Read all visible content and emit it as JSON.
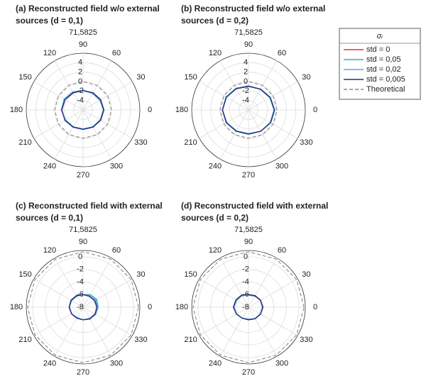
{
  "chart_data": [
    {
      "type": "polar",
      "title": [
        "(a) Reconstructed field w/o external",
        "sources (d = 0,1)"
      ],
      "subtitle": "71,5825",
      "legend_title": "σᵣ",
      "theta": [
        0,
        30,
        60,
        90,
        120,
        150,
        180,
        210,
        240,
        270,
        300,
        330
      ],
      "rlim": [
        -6,
        6
      ],
      "rticks": [
        4,
        2,
        0,
        -2,
        -4
      ],
      "grid": true,
      "series": [
        {
          "name": "std = 0",
          "color": "#e8332a",
          "dash": false,
          "values": [
            -1.6,
            -1.7,
            -1.8,
            -1.9,
            -1.8,
            -1.6,
            -1.5,
            -1.6,
            -1.8,
            -1.9,
            -1.8,
            -1.7
          ]
        },
        {
          "name": "std = 0,05",
          "color": "#35b3a6",
          "dash": false,
          "values": [
            -1.7,
            -1.9,
            -2.0,
            -1.8,
            -1.6,
            -1.4,
            -1.4,
            -1.7,
            -1.9,
            -2.0,
            -1.9,
            -1.8
          ]
        },
        {
          "name": "std = 0,02",
          "color": "#5aa9e6",
          "dash": false,
          "values": [
            -1.6,
            -1.8,
            -1.9,
            -1.9,
            -1.7,
            -1.5,
            -1.5,
            -1.6,
            -1.8,
            -1.9,
            -1.8,
            -1.7
          ]
        },
        {
          "name": "std = 0,005",
          "color": "#2b2a8c",
          "dash": false,
          "values": [
            -1.6,
            -1.7,
            -1.8,
            -1.9,
            -1.8,
            -1.6,
            -1.5,
            -1.6,
            -1.8,
            -1.9,
            -1.8,
            -1.7
          ]
        },
        {
          "name": "Theoretical",
          "color": "#888888",
          "dash": true,
          "values": [
            0,
            0,
            0,
            0,
            0,
            0,
            0,
            0,
            0,
            0,
            0,
            0
          ]
        }
      ]
    },
    {
      "type": "polar",
      "title": [
        "(b) Reconstructed field w/o external",
        "sources (d = 0,2)"
      ],
      "subtitle": "71,5825",
      "theta": [
        0,
        30,
        60,
        90,
        120,
        150,
        180,
        210,
        240,
        270,
        300,
        330
      ],
      "rlim": [
        -6,
        6
      ],
      "rticks": [
        4,
        2,
        0,
        -2,
        -4
      ],
      "grid": true,
      "series": [
        {
          "name": "std = 0",
          "color": "#e8332a",
          "dash": false,
          "values": [
            -0.5,
            -0.7,
            -0.9,
            -1.0,
            -0.8,
            -0.6,
            -0.5,
            -0.6,
            -0.8,
            -0.9,
            -0.8,
            -0.6
          ]
        },
        {
          "name": "std = 0,05",
          "color": "#35b3a6",
          "dash": false,
          "values": [
            -0.6,
            -0.8,
            -1.0,
            -0.9,
            -0.7,
            -0.5,
            -0.5,
            -0.7,
            -0.9,
            -1.0,
            -0.8,
            -0.7
          ]
        },
        {
          "name": "std = 0,02",
          "color": "#5aa9e6",
          "dash": false,
          "values": [
            -0.5,
            -0.7,
            -0.9,
            -0.9,
            -0.8,
            -0.6,
            -0.5,
            -0.6,
            -0.8,
            -0.9,
            -0.8,
            -0.6
          ]
        },
        {
          "name": "std = 0,005",
          "color": "#2b2a8c",
          "dash": false,
          "values": [
            -0.5,
            -0.7,
            -0.9,
            -1.0,
            -0.8,
            -0.6,
            -0.5,
            -0.6,
            -0.8,
            -0.9,
            -0.8,
            -0.6
          ]
        },
        {
          "name": "Theoretical",
          "color": "#888888",
          "dash": true,
          "values": [
            0,
            0,
            0,
            0,
            0,
            0,
            0,
            0,
            0,
            0,
            0,
            0
          ]
        }
      ]
    },
    {
      "type": "polar",
      "title": [
        "(c) Reconstructed field with external",
        "sources (d = 0,1)"
      ],
      "subtitle": "71,5825",
      "theta": [
        0,
        30,
        60,
        90,
        120,
        150,
        180,
        210,
        240,
        270,
        300,
        330
      ],
      "rlim": [
        -8,
        1
      ],
      "rticks": [
        0,
        -2,
        -4,
        -6,
        -8
      ],
      "grid": true,
      "series": [
        {
          "name": "std = 0",
          "color": "#e8332a",
          "dash": false,
          "values": [
            -5.8,
            -5.9,
            -6.0,
            -6.0,
            -5.9,
            -5.8,
            -5.8,
            -5.9,
            -6.0,
            -6.0,
            -5.9,
            -5.8
          ]
        },
        {
          "name": "std = 0,05",
          "color": "#35b3a6",
          "dash": false,
          "values": [
            -5.6,
            -5.5,
            -5.7,
            -6.0,
            -6.0,
            -5.9,
            -5.8,
            -5.9,
            -6.1,
            -6.0,
            -5.8,
            -5.7
          ]
        },
        {
          "name": "std = 0,02",
          "color": "#5aa9e6",
          "dash": false,
          "values": [
            -5.7,
            -5.7,
            -5.9,
            -6.0,
            -5.9,
            -5.8,
            -5.8,
            -5.9,
            -6.0,
            -6.0,
            -5.9,
            -5.8
          ]
        },
        {
          "name": "std = 0,005",
          "color": "#2b2a8c",
          "dash": false,
          "values": [
            -5.8,
            -5.9,
            -6.0,
            -6.0,
            -5.9,
            -5.8,
            -5.8,
            -5.9,
            -6.0,
            -6.0,
            -5.9,
            -5.8
          ]
        },
        {
          "name": "Theoretical",
          "color": "#888888",
          "dash": true,
          "values": [
            0.8,
            0.8,
            0.8,
            0.8,
            0.8,
            0.8,
            0.8,
            0.8,
            0.8,
            0.8,
            0.8,
            0.8
          ]
        }
      ]
    },
    {
      "type": "polar",
      "title": [
        "(d) Reconstructed field with external",
        "sources (d = 0,2)"
      ],
      "subtitle": "71,5825",
      "theta": [
        0,
        30,
        60,
        90,
        120,
        150,
        180,
        210,
        240,
        270,
        300,
        330
      ],
      "rlim": [
        -8,
        1
      ],
      "rticks": [
        0,
        -2,
        -4,
        -6,
        -8
      ],
      "grid": true,
      "series": [
        {
          "name": "std = 0",
          "color": "#e8332a",
          "dash": false,
          "values": [
            -5.7,
            -5.8,
            -5.9,
            -6.0,
            -5.8,
            -5.7,
            -5.6,
            -5.8,
            -6.0,
            -6.0,
            -5.9,
            -5.8
          ]
        },
        {
          "name": "std = 0,05",
          "color": "#35b3a6",
          "dash": false,
          "values": [
            -5.8,
            -5.8,
            -6.0,
            -6.1,
            -5.9,
            -5.8,
            -5.7,
            -5.8,
            -6.0,
            -6.1,
            -5.9,
            -5.8
          ]
        },
        {
          "name": "std = 0,02",
          "color": "#5aa9e6",
          "dash": false,
          "values": [
            -5.7,
            -5.8,
            -5.9,
            -6.0,
            -5.9,
            -5.7,
            -5.7,
            -5.8,
            -6.0,
            -6.0,
            -5.9,
            -5.8
          ]
        },
        {
          "name": "std = 0,005",
          "color": "#2b2a8c",
          "dash": false,
          "values": [
            -5.7,
            -5.8,
            -5.9,
            -6.0,
            -5.8,
            -5.7,
            -5.6,
            -5.8,
            -6.0,
            -6.0,
            -5.9,
            -5.8
          ]
        },
        {
          "name": "Theoretical",
          "color": "#888888",
          "dash": true,
          "values": [
            0.8,
            0.8,
            0.8,
            0.8,
            0.8,
            0.8,
            0.8,
            0.8,
            0.8,
            0.8,
            0.8,
            0.8
          ]
        }
      ]
    }
  ]
}
